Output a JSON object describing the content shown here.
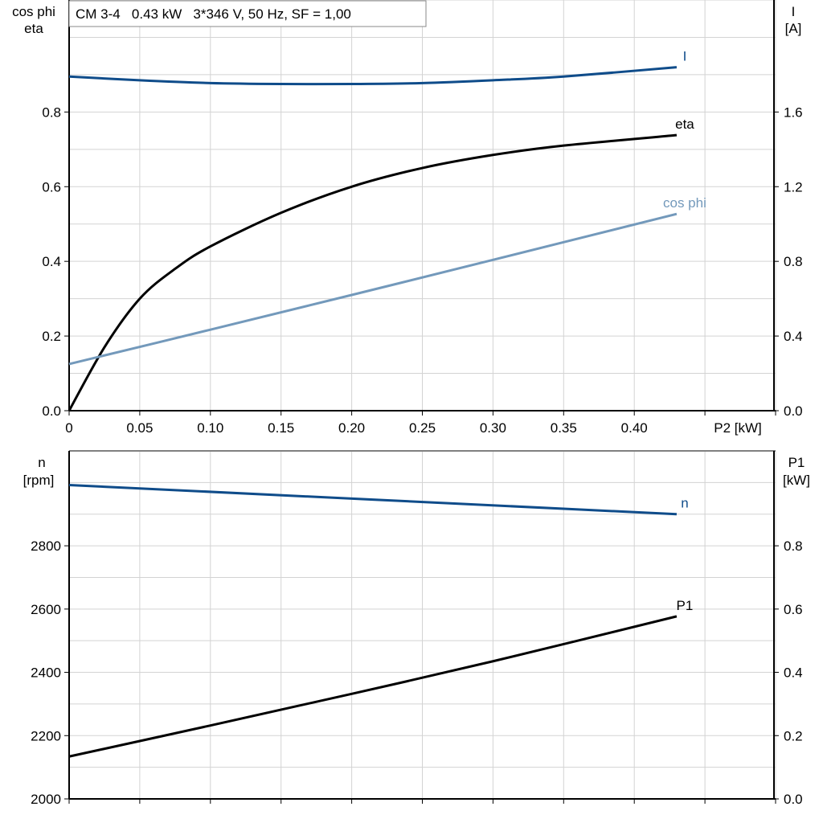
{
  "chart_data": [
    {
      "type": "line",
      "title": "CM 3-4   0.43 kW   3*346 V, 50 Hz, SF = 1,00",
      "xlabel": "P2 [kW]",
      "ylabel_left": [
        "cos phi",
        "eta"
      ],
      "ylabel_right": [
        "I",
        "[A]"
      ],
      "xlim": [
        0,
        0.5
      ],
      "ylim_left": [
        0,
        1.1
      ],
      "ylim_right": [
        0,
        2.2
      ],
      "x_ticks": [
        "0",
        "0.05",
        "0.10",
        "0.15",
        "0.20",
        "0.25",
        "0.30",
        "0.35",
        "0.40"
      ],
      "y_ticks_left": [
        "0.0",
        "0.2",
        "0.4",
        "0.6",
        "0.8"
      ],
      "y_ticks_right": [
        "0.0",
        "0.4",
        "0.8",
        "1.2",
        "1.6"
      ],
      "grid": true,
      "series": [
        {
          "name": "I",
          "axis": "right",
          "color": "#0f4c8a",
          "x": [
            0,
            0.05,
            0.1,
            0.15,
            0.2,
            0.25,
            0.3,
            0.35,
            0.43
          ],
          "values": [
            1.79,
            1.77,
            1.755,
            1.75,
            1.75,
            1.755,
            1.77,
            1.79,
            1.84
          ]
        },
        {
          "name": "eta",
          "axis": "left",
          "color": "#000000",
          "x": [
            0,
            0.025,
            0.05,
            0.075,
            0.1,
            0.15,
            0.2,
            0.25,
            0.3,
            0.35,
            0.43
          ],
          "values": [
            0,
            0.17,
            0.3,
            0.38,
            0.44,
            0.53,
            0.6,
            0.65,
            0.685,
            0.71,
            0.738
          ]
        },
        {
          "name": "cos phi",
          "axis": "left",
          "color": "#7399bb",
          "x": [
            0,
            0.1,
            0.2,
            0.3,
            0.43
          ],
          "values": [
            0.125,
            0.217,
            0.31,
            0.404,
            0.527
          ]
        }
      ]
    },
    {
      "type": "line",
      "xlim": [
        0,
        0.5
      ],
      "ylabel_left": [
        "n",
        "[rpm]"
      ],
      "ylabel_right": [
        "P1",
        "[kW]"
      ],
      "ylim_left": [
        2000,
        3100
      ],
      "ylim_right": [
        0,
        1.1
      ],
      "y_ticks_left": [
        "2000",
        "2200",
        "2400",
        "2600",
        "2800"
      ],
      "y_ticks_right": [
        "0.0",
        "0.2",
        "0.4",
        "0.6",
        "0.8"
      ],
      "grid": true,
      "series": [
        {
          "name": "n",
          "axis": "left",
          "color": "#0f4c8a",
          "x": [
            0,
            0.43
          ],
          "values": [
            2992,
            2900
          ]
        },
        {
          "name": "P1",
          "axis": "right",
          "color": "#000000",
          "x": [
            0,
            0.1,
            0.2,
            0.3,
            0.43
          ],
          "values": [
            0.134,
            0.232,
            0.332,
            0.435,
            0.577
          ]
        }
      ]
    }
  ]
}
